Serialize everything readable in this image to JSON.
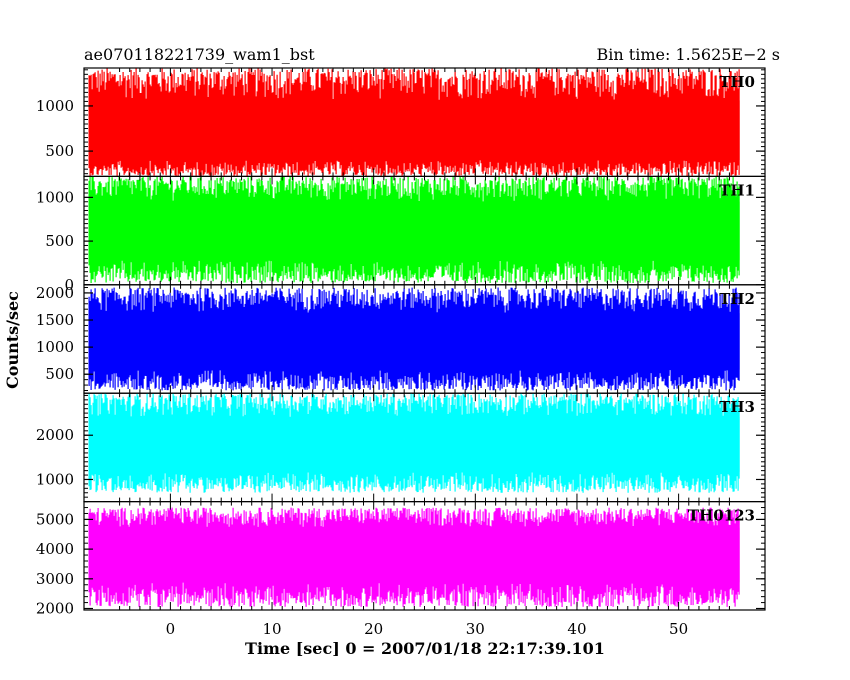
{
  "chart_data": {
    "type": "line",
    "title_left": "ae070118221739_wam1_bst",
    "title_right": "Bin time: 1.5625E−2 s",
    "xlabel": "Time [sec] 0 = 2007/01/18 22:17:39.101",
    "ylabel": "Counts/sec",
    "xlim": [
      -8.5,
      58.5
    ],
    "data_x_range": [
      -8,
      56
    ],
    "x_ticks": [
      0,
      10,
      20,
      30,
      40,
      50
    ],
    "x_tick_labels": [
      "0",
      "10",
      "20",
      "30",
      "40",
      "50"
    ],
    "grid": false,
    "legend": "none",
    "panels": [
      {
        "name": "TH0",
        "color": "#ff0000",
        "ylim": [
          220,
          1420
        ],
        "y_ticks": [
          500,
          1000
        ],
        "y_tick_labels": [
          "500",
          "1000"
        ],
        "mean": 620,
        "band_low": 220,
        "band_high": 1420
      },
      {
        "name": "TH1",
        "color": "#00ff00",
        "ylim": [
          0,
          1240
        ],
        "y_ticks": [
          0,
          500,
          1000
        ],
        "y_tick_labels": [
          "0",
          "500",
          "1000"
        ],
        "mean": 600,
        "band_low": 20,
        "band_high": 1240
      },
      {
        "name": "TH2",
        "color": "#0000ff",
        "ylim": [
          150,
          2150
        ],
        "y_ticks": [
          500,
          1000,
          1500,
          2000
        ],
        "y_tick_labels": [
          "500",
          "1000",
          "1500",
          "2000"
        ],
        "mean": 1050,
        "band_low": 200,
        "band_high": 2100
      },
      {
        "name": "TH3",
        "color": "#00ffff",
        "ylim": [
          500,
          2950
        ],
        "y_ticks": [
          1000,
          2000
        ],
        "y_tick_labels": [
          "1000",
          "2000"
        ],
        "mean": 1750,
        "band_low": 700,
        "band_high": 2950
      },
      {
        "name": "TH0123",
        "color": "#ff00ff",
        "ylim": [
          1950,
          5600
        ],
        "y_ticks": [
          2000,
          3000,
          4000,
          5000
        ],
        "y_tick_labels": [
          "2000",
          "3000",
          "4000",
          "5000"
        ],
        "mean": 3900,
        "band_low": 2050,
        "band_high": 5400
      }
    ]
  }
}
